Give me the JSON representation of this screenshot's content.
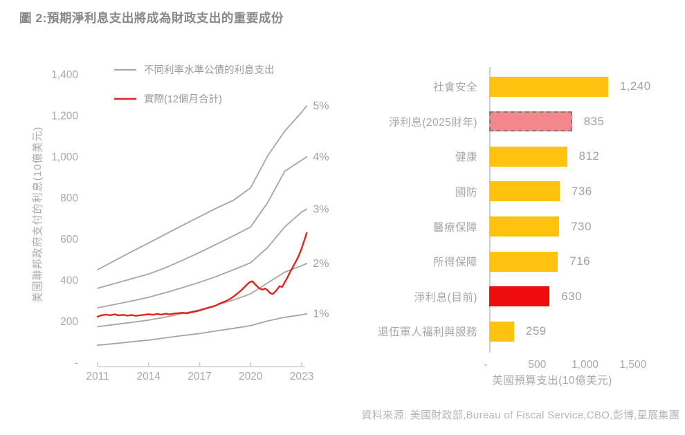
{
  "title": "圖 2:預期淨利息支出將成為財政支出的重要成份",
  "source": "資料來源: 美國財政部,Bureau of Fiscal Service,CBO,彭博,星展集團",
  "colors": {
    "yellow_bar": "#FFC20E",
    "pink_bar": "#F4878C",
    "pink_bar_border": "#7C7C7C",
    "red_bar": "#EE0C0C",
    "red_line": "#E2231A",
    "gray_line": "#A5A5A5",
    "muted_text": "#A7A9AC",
    "value_text": "#9EA0A2",
    "axis_line": "#CBCDCF"
  },
  "chart_data": [
    {
      "type": "line",
      "ylabel": "美國聯邦政府支付的利息(10億美元)",
      "xlabel": "",
      "ylim": [
        0,
        1450
      ],
      "xlim": [
        2011,
        2023.3
      ],
      "grid": false,
      "legend_position": "top-left-inside",
      "legend": [
        {
          "label": "不同利率水準公債的利息支出",
          "color": "#A5A5A5",
          "width": 2
        },
        {
          "label": "實際(12個月合計)",
          "color": "#E2231A",
          "width": 2.6
        }
      ],
      "x_ticks": [
        {
          "value": 2011,
          "label": "2011"
        },
        {
          "value": 2014,
          "label": "2014"
        },
        {
          "value": 2017,
          "label": "2017"
        },
        {
          "value": 2020,
          "label": "2020"
        },
        {
          "value": 2023,
          "label": "2023"
        }
      ],
      "y_ticks": [
        {
          "value": 0,
          "label": "-"
        },
        {
          "value": 200,
          "label": "200"
        },
        {
          "value": 400,
          "label": "400"
        },
        {
          "value": 600,
          "label": "600"
        },
        {
          "value": 800,
          "label": "800"
        },
        {
          "value": 1000,
          "label": "1,000"
        },
        {
          "value": 1200,
          "label": "1,200"
        },
        {
          "value": 1400,
          "label": "1,400"
        }
      ],
      "series": [
        {
          "name": "interest-at-1pct",
          "end_label": "1%",
          "color": "#A5A5A5",
          "width": 1.8,
          "x": [
            2011,
            2012,
            2013,
            2014,
            2015,
            2016,
            2017,
            2018,
            2019,
            2020,
            2021,
            2022,
            2023,
            2023.3
          ],
          "values": [
            85,
            93,
            102,
            110,
            121,
            132,
            142,
            155,
            167,
            180,
            203,
            221,
            233,
            238
          ]
        },
        {
          "name": "interest-at-2pct",
          "end_label": "2%",
          "color": "#A5A5A5",
          "width": 1.8,
          "x": [
            2011,
            2012,
            2013,
            2014,
            2015,
            2016,
            2017,
            2018,
            2019,
            2020,
            2021,
            2022,
            2023,
            2023.3
          ],
          "values": [
            175,
            186,
            196,
            207,
            222,
            239,
            257,
            280,
            305,
            335,
            388,
            440,
            472,
            482
          ]
        },
        {
          "name": "interest-at-3pct",
          "end_label": "3%",
          "color": "#A5A5A5",
          "width": 1.8,
          "x": [
            2011,
            2012,
            2013,
            2014,
            2015,
            2016,
            2017,
            2018,
            2019,
            2020,
            2021,
            2022,
            2023,
            2023.3
          ],
          "values": [
            267,
            283,
            300,
            318,
            341,
            365,
            391,
            420,
            452,
            486,
            560,
            660,
            733,
            746
          ]
        },
        {
          "name": "interest-at-4pct",
          "end_label": "4%",
          "color": "#A5A5A5",
          "width": 1.8,
          "x": [
            2011,
            2012,
            2013,
            2014,
            2015,
            2016,
            2017,
            2018,
            2019,
            2020,
            2021,
            2022,
            2023,
            2023.3
          ],
          "values": [
            362,
            385,
            408,
            431,
            462,
            498,
            536,
            576,
            617,
            660,
            778,
            930,
            985,
            1000
          ]
        },
        {
          "name": "interest-at-5pct",
          "end_label": "5%",
          "color": "#A5A5A5",
          "width": 1.8,
          "x": [
            2011,
            2012,
            2013,
            2014,
            2015,
            2016,
            2017,
            2018,
            2019,
            2020,
            2021,
            2022,
            2023,
            2023.3
          ],
          "values": [
            452,
            496,
            540,
            582,
            625,
            668,
            710,
            752,
            790,
            850,
            1005,
            1125,
            1218,
            1248
          ]
        },
        {
          "name": "actual-12m-sum",
          "color": "#E2231A",
          "width": 2.4,
          "points": [
            [
              2011.0,
              224
            ],
            [
              2011.25,
              231
            ],
            [
              2011.5,
              234
            ],
            [
              2011.75,
              231
            ],
            [
              2012.0,
              235
            ],
            [
              2012.25,
              230
            ],
            [
              2012.5,
              233
            ],
            [
              2012.75,
              229
            ],
            [
              2013.0,
              232
            ],
            [
              2013.25,
              228
            ],
            [
              2013.5,
              231
            ],
            [
              2013.75,
              233
            ],
            [
              2014.0,
              236
            ],
            [
              2014.25,
              233
            ],
            [
              2014.5,
              237
            ],
            [
              2014.75,
              234
            ],
            [
              2015.0,
              238
            ],
            [
              2015.25,
              235
            ],
            [
              2015.5,
              239
            ],
            [
              2015.75,
              241
            ],
            [
              2016.0,
              243
            ],
            [
              2016.25,
              240
            ],
            [
              2016.5,
              245
            ],
            [
              2016.75,
              249
            ],
            [
              2017.0,
              254
            ],
            [
              2017.25,
              261
            ],
            [
              2017.5,
              267
            ],
            [
              2017.75,
              272
            ],
            [
              2018.0,
              280
            ],
            [
              2018.25,
              290
            ],
            [
              2018.5,
              298
            ],
            [
              2018.75,
              308
            ],
            [
              2019.0,
              322
            ],
            [
              2019.25,
              338
            ],
            [
              2019.5,
              356
            ],
            [
              2019.75,
              377
            ],
            [
              2019.95,
              392
            ],
            [
              2020.1,
              396
            ],
            [
              2020.3,
              378
            ],
            [
              2020.5,
              362
            ],
            [
              2020.7,
              355
            ],
            [
              2020.85,
              361
            ],
            [
              2021.0,
              352
            ],
            [
              2021.15,
              338
            ],
            [
              2021.3,
              334
            ],
            [
              2021.5,
              350
            ],
            [
              2021.7,
              372
            ],
            [
              2021.85,
              368
            ],
            [
              2022.0,
              390
            ],
            [
              2022.15,
              412
            ],
            [
              2022.3,
              438
            ],
            [
              2022.5,
              468
            ],
            [
              2022.7,
              498
            ],
            [
              2022.85,
              524
            ],
            [
              2023.0,
              556
            ],
            [
              2023.15,
              592
            ],
            [
              2023.3,
              631
            ]
          ]
        }
      ]
    },
    {
      "type": "bar",
      "orientation": "horizontal",
      "xlabel": "美國預算支出(10億美元)",
      "xlim": [
        0,
        1500
      ],
      "grid": false,
      "categories": [
        "社會安全",
        "淨利息(2025財年)",
        "健康",
        "國防",
        "醫療保障",
        "所得保障",
        "淨利息(目前)",
        "退伍軍人福利與服務"
      ],
      "values": [
        1240,
        835,
        812,
        736,
        730,
        716,
        630,
        259
      ],
      "value_labels": [
        "1,240",
        "835",
        "812",
        "736",
        "730",
        "716",
        "630",
        "259"
      ],
      "bar_styles": [
        "yellow",
        "pink-dashed",
        "yellow",
        "yellow",
        "yellow",
        "yellow",
        "red",
        "yellow"
      ],
      "x_ticks": [
        {
          "value": 0,
          "label": "-"
        },
        {
          "value": 500,
          "label": "500"
        },
        {
          "value": 1000,
          "label": "1,000"
        },
        {
          "value": 1500,
          "label": "1,500"
        }
      ]
    }
  ]
}
